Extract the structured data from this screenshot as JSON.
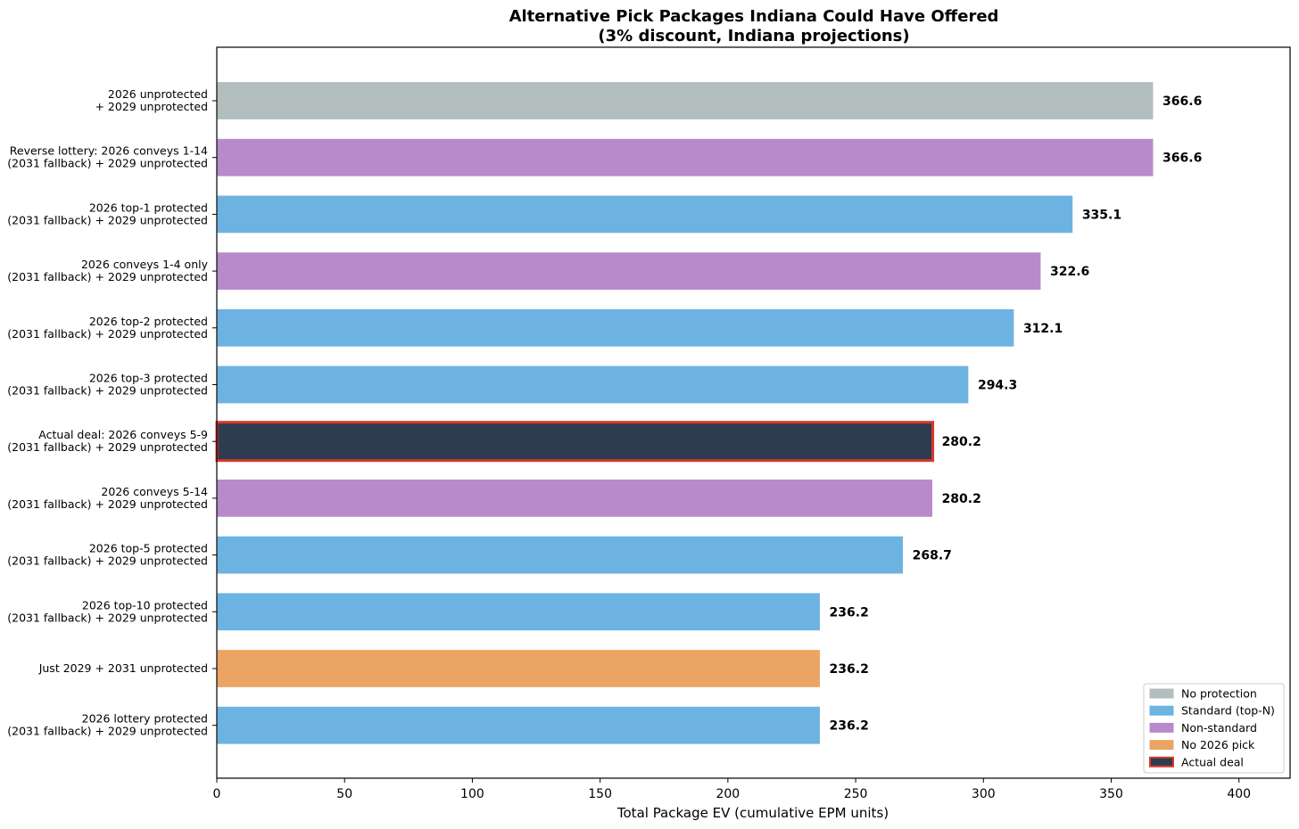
{
  "chart_data": {
    "type": "bar",
    "orientation": "horizontal",
    "title": "Alternative Pick Packages Indiana Could Have Offered",
    "subtitle": "(3% discount, Indiana projections)",
    "xlabel": "Total Package EV (cumulative EPM units)",
    "ylabel": "",
    "xlim": [
      0,
      420
    ],
    "xticks": [
      0,
      50,
      100,
      150,
      200,
      250,
      300,
      350,
      400
    ],
    "grid": false,
    "legend_position": "bottom-right",
    "bars": [
      {
        "label_lines": [
          "2026 unprotected",
          "+ 2029 unprotected"
        ],
        "value": 366.6,
        "value_label": "366.6",
        "category": "No protection"
      },
      {
        "label_lines": [
          "Reverse lottery: 2026 conveys 1-14",
          "(2031 fallback) + 2029 unprotected"
        ],
        "value": 366.6,
        "value_label": "366.6",
        "category": "Non-standard"
      },
      {
        "label_lines": [
          "2026 top-1 protected",
          "(2031 fallback) + 2029 unprotected"
        ],
        "value": 335.1,
        "value_label": "335.1",
        "category": "Standard (top-N)"
      },
      {
        "label_lines": [
          "2026 conveys 1-4 only",
          "(2031 fallback) + 2029 unprotected"
        ],
        "value": 322.6,
        "value_label": "322.6",
        "category": "Non-standard"
      },
      {
        "label_lines": [
          "2026 top-2 protected",
          "(2031 fallback) + 2029 unprotected"
        ],
        "value": 312.1,
        "value_label": "312.1",
        "category": "Standard (top-N)"
      },
      {
        "label_lines": [
          "2026 top-3 protected",
          "(2031 fallback) + 2029 unprotected"
        ],
        "value": 294.3,
        "value_label": "294.3",
        "category": "Standard (top-N)"
      },
      {
        "label_lines": [
          "Actual deal: 2026 conveys 5-9",
          "(2031 fallback) + 2029 unprotected"
        ],
        "value": 280.2,
        "value_label": "280.2",
        "category": "Actual deal"
      },
      {
        "label_lines": [
          "2026 conveys 5-14",
          "(2031 fallback) + 2029 unprotected"
        ],
        "value": 280.2,
        "value_label": "280.2",
        "category": "Non-standard"
      },
      {
        "label_lines": [
          "2026 top-5 protected",
          "(2031 fallback) + 2029 unprotected"
        ],
        "value": 268.7,
        "value_label": "268.7",
        "category": "Standard (top-N)"
      },
      {
        "label_lines": [
          "2026 top-10 protected",
          "(2031 fallback) + 2029 unprotected"
        ],
        "value": 236.2,
        "value_label": "236.2",
        "category": "Standard (top-N)"
      },
      {
        "label_lines": [
          "Just 2029 + 2031 unprotected"
        ],
        "value": 236.2,
        "value_label": "236.2",
        "category": "No 2026 pick"
      },
      {
        "label_lines": [
          "2026 lottery protected",
          "(2031 fallback) + 2029 unprotected"
        ],
        "value": 236.2,
        "value_label": "236.2",
        "category": "Standard (top-N)"
      }
    ],
    "legend": [
      {
        "label": "No protection",
        "color": "#b3bfbf",
        "outline": "#a9b5b5"
      },
      {
        "label": "Standard (top-N)",
        "color": "#6db3e2",
        "outline": "#5ea8d8"
      },
      {
        "label": "Non-standard",
        "color": "#b88acb",
        "outline": "#a97dbd"
      },
      {
        "label": "No 2026 pick",
        "color": "#eca464",
        "outline": "#e39554"
      },
      {
        "label": "Actual deal",
        "color": "#2d3c4f",
        "outline": "#d9382b"
      }
    ]
  }
}
